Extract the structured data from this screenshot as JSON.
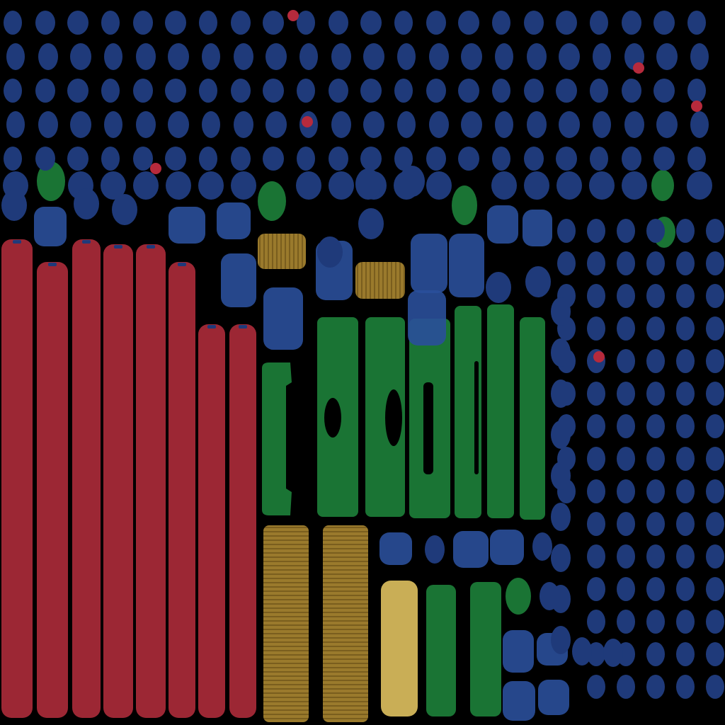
{
  "colors": {
    "background": "#000000",
    "red": "#9c2734",
    "navy": "#1f3a7a",
    "blue": "#2a4f9a",
    "green": "#1a7434",
    "gold": "#9a7a2c",
    "sand": "#c9ae56",
    "dot": "#b62a3c"
  },
  "regions": [
    {
      "name": "red-bars",
      "color": "red",
      "count": 8
    },
    {
      "name": "gold-blocks",
      "color": "gold",
      "count": 4
    },
    {
      "name": "sand-block",
      "color": "sand",
      "count": 1
    },
    {
      "name": "green-columns",
      "color": "green",
      "count": 9
    },
    {
      "name": "green-blobs",
      "color": "green",
      "count": 6
    },
    {
      "name": "navy-blobs",
      "color": "navy"
    },
    {
      "name": "red-dots",
      "color": "dot",
      "count": 6
    }
  ]
}
